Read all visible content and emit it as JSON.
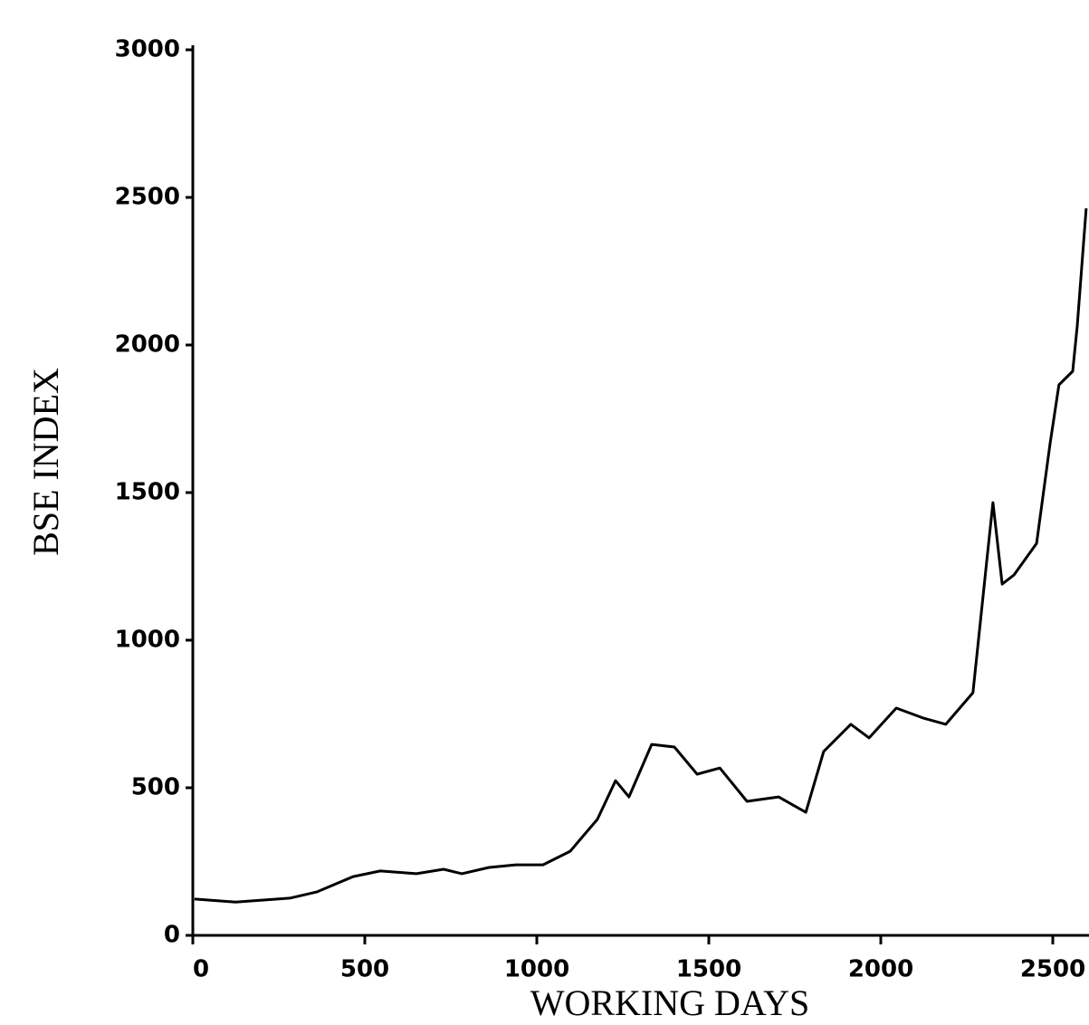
{
  "chart_data": {
    "type": "line",
    "x_label": "WORKING DAYS",
    "y_label": "BSE INDEX",
    "x": [
      5,
      124,
      282,
      360,
      466,
      545,
      650,
      729,
      782,
      861,
      939,
      1018,
      1097,
      1176,
      1229,
      1268,
      1334,
      1400,
      1466,
      1532,
      1611,
      1703,
      1782,
      1834,
      1913,
      1966,
      2045,
      2124,
      2189,
      2268,
      2308,
      2326,
      2353,
      2387,
      2453,
      2492,
      2518,
      2558,
      2571,
      2597
    ],
    "series": [
      {
        "color": "#000000",
        "values": [
          123,
          113,
          126,
          147,
          199,
          218,
          209,
          224,
          209,
          230,
          239,
          239,
          285,
          393,
          524,
          469,
          647,
          638,
          546,
          567,
          454,
          469,
          417,
          623,
          715,
          669,
          770,
          736,
          715,
          822,
          1267,
          1466,
          1190,
          1221,
          1328,
          1666,
          1865,
          1911,
          2064,
          2463
        ]
      }
    ],
    "xlim": [
      0,
      2600
    ],
    "xticks": [
      0,
      500,
      1000,
      1500,
      2000,
      2500
    ],
    "ylim": [
      0,
      3000
    ],
    "yticks": [
      0,
      500,
      1000,
      1500,
      2000,
      2500,
      3000
    ],
    "grid": false
  }
}
